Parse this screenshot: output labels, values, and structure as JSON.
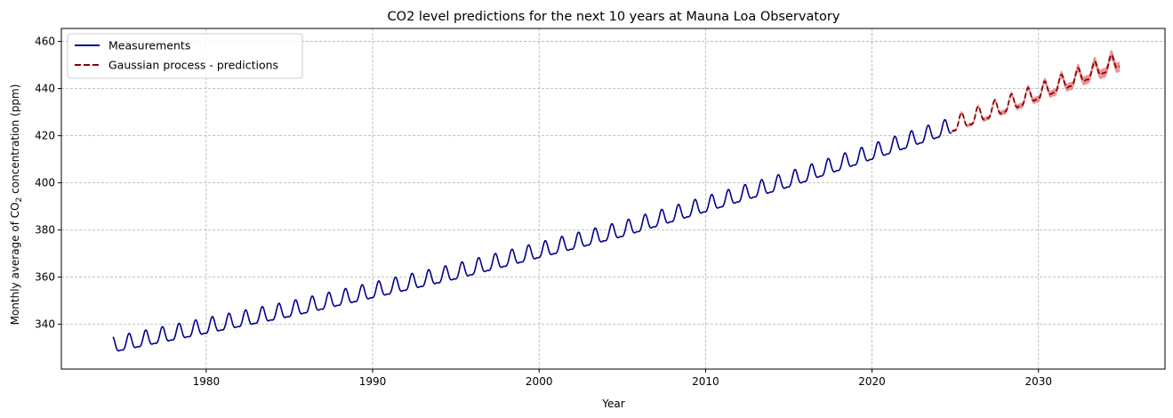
{
  "chart_data": {
    "type": "line",
    "title": "CO2 level predictions for the next 10 years at Mauna Loa Observatory",
    "xlabel": "Year",
    "ylabel_prefix": "Monthly average of CO",
    "ylabel_subscript": "2",
    "ylabel_suffix": " concentration (ppm)",
    "xlim": [
      1971.3,
      2037.6
    ],
    "ylim": [
      321.0,
      465.5
    ],
    "x_ticks": [
      1980,
      1990,
      2000,
      2010,
      2020,
      2030
    ],
    "x_tick_labels": [
      "1980",
      "1990",
      "2000",
      "2010",
      "2020",
      "2030"
    ],
    "y_ticks": [
      340,
      360,
      380,
      400,
      420,
      440,
      460
    ],
    "y_tick_labels": [
      "340",
      "360",
      "380",
      "400",
      "420",
      "440",
      "460"
    ],
    "grid": true,
    "legend_position": "top-left",
    "series": [
      {
        "name": "Measurements",
        "style": "solid",
        "color": "#00008b",
        "x_range": [
          1974.4,
          2024.8
        ],
        "trend_points": [
          [
            1974.4,
            330.5
          ],
          [
            1985,
            345.5
          ],
          [
            1995,
            361.5
          ],
          [
            2005,
            379.5
          ],
          [
            2015,
            400.5
          ],
          [
            2024.8,
            423.5
          ]
        ],
        "seasonal_amplitude": 3.2
      },
      {
        "name": "Gaussian process - predictions",
        "style": "dashed",
        "color": "#8b0000",
        "band_color": "#e06666",
        "x_range": [
          2024.8,
          2034.9
        ],
        "trend_points": [
          [
            2024.8,
            424.0
          ],
          [
            2029,
            435.0
          ],
          [
            2034.9,
            451.5
          ]
        ],
        "seasonal_amplitude": 3.2,
        "uncertainty_ppm": [
          0.6,
          2.2
        ]
      }
    ]
  }
}
